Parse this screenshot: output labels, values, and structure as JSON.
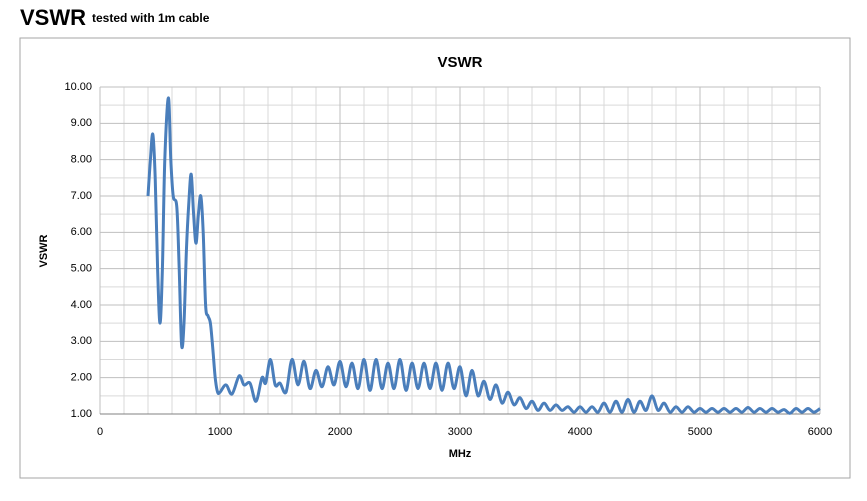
{
  "header": {
    "title": "VSWR",
    "subtitle": "tested with 1m cable"
  },
  "chart_data": {
    "type": "line",
    "title": "VSWR",
    "x_label": "MHz",
    "y_label": "VSWR",
    "color": "#4a7ebb",
    "x": [
      400,
      420,
      440,
      460,
      480,
      500,
      520,
      540,
      570,
      590,
      610,
      640,
      660,
      680,
      700,
      720,
      740,
      760,
      780,
      800,
      820,
      840,
      860,
      880,
      900,
      920,
      940,
      960,
      980,
      1000,
      1050,
      1100,
      1160,
      1200,
      1250,
      1300,
      1350,
      1380,
      1420,
      1460,
      1500,
      1550,
      1600,
      1650,
      1700,
      1750,
      1800,
      1850,
      1900,
      1950,
      2000,
      2050,
      2100,
      2150,
      2200,
      2250,
      2300,
      2350,
      2400,
      2450,
      2500,
      2550,
      2600,
      2650,
      2700,
      2750,
      2800,
      2850,
      2900,
      2950,
      3000,
      3050,
      3100,
      3150,
      3200,
      3250,
      3300,
      3350,
      3400,
      3450,
      3500,
      3550,
      3600,
      3650,
      3700,
      3750,
      3800,
      3850,
      3900,
      3950,
      4000,
      4050,
      4100,
      4150,
      4200,
      4250,
      4300,
      4350,
      4400,
      4450,
      4500,
      4550,
      4600,
      4650,
      4700,
      4750,
      4800,
      4850,
      4900,
      4950,
      5000,
      5050,
      5100,
      5150,
      5200,
      5250,
      5300,
      5350,
      5400,
      5450,
      5500,
      5550,
      5600,
      5650,
      5700,
      5750,
      5800,
      5850,
      5900,
      5950,
      6000
    ],
    "values": [
      7.0,
      8.0,
      8.7,
      7.5,
      5.0,
      3.5,
      5.0,
      8.0,
      9.7,
      8.0,
      7.0,
      6.7,
      5.0,
      2.9,
      3.5,
      5.5,
      6.8,
      7.6,
      6.5,
      5.7,
      6.5,
      7.0,
      6.0,
      4.0,
      3.7,
      3.5,
      2.8,
      2.0,
      1.6,
      1.6,
      1.8,
      1.55,
      2.05,
      1.8,
      1.85,
      1.35,
      2.0,
      1.85,
      2.5,
      1.8,
      1.85,
      1.6,
      2.5,
      1.8,
      2.45,
      1.7,
      2.2,
      1.75,
      2.3,
      1.8,
      2.45,
      1.75,
      2.4,
      1.7,
      2.5,
      1.65,
      2.5,
      1.7,
      2.4,
      1.7,
      2.5,
      1.65,
      2.4,
      1.7,
      2.4,
      1.7,
      2.4,
      1.65,
      2.4,
      1.7,
      2.3,
      1.5,
      2.2,
      1.5,
      1.9,
      1.4,
      1.8,
      1.3,
      1.6,
      1.25,
      1.45,
      1.15,
      1.35,
      1.1,
      1.3,
      1.1,
      1.25,
      1.1,
      1.2,
      1.05,
      1.2,
      1.05,
      1.2,
      1.05,
      1.3,
      1.05,
      1.35,
      1.05,
      1.4,
      1.05,
      1.35,
      1.1,
      1.5,
      1.1,
      1.3,
      1.05,
      1.2,
      1.05,
      1.2,
      1.05,
      1.15,
      1.05,
      1.15,
      1.05,
      1.15,
      1.05,
      1.15,
      1.05,
      1.18,
      1.05,
      1.15,
      1.05,
      1.15,
      1.05,
      1.12,
      1.02,
      1.15,
      1.05,
      1.15,
      1.05,
      1.15
    ],
    "xlim": [
      0,
      6000
    ],
    "xticks": [
      0,
      1000,
      2000,
      3000,
      4000,
      5000,
      6000
    ],
    "ylim": [
      1,
      10
    ],
    "yticks": [
      {
        "value": 1,
        "label": "1.00"
      },
      {
        "value": 2,
        "label": "2.00"
      },
      {
        "value": 3,
        "label": "3.00"
      },
      {
        "value": 4,
        "label": "4.00"
      },
      {
        "value": 5,
        "label": "5.00"
      },
      {
        "value": 6,
        "label": "6.00"
      },
      {
        "value": 7,
        "label": "7.00"
      },
      {
        "value": 8,
        "label": "8.00"
      },
      {
        "value": 9,
        "label": "9.00"
      },
      {
        "value": 10,
        "label": "10.00"
      }
    ],
    "grid": true
  }
}
